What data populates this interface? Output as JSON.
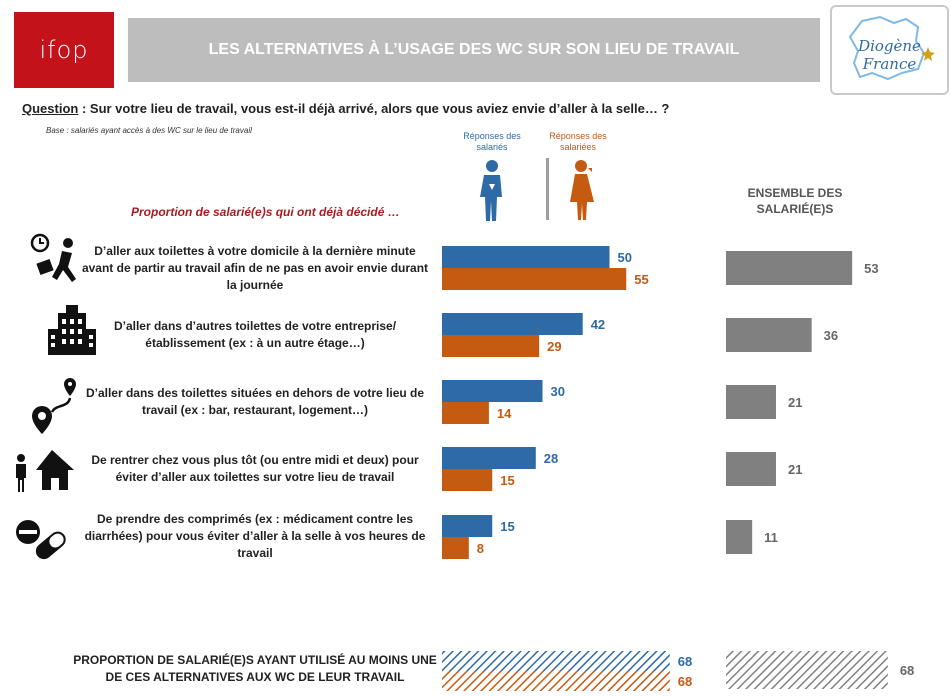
{
  "header": {
    "logo_text": "ifop",
    "title": "LES ALTERNATIVES À L’USAGE DES WC SUR SON LIEU DE TRAVAIL",
    "partner_logo_line1": "Diogène",
    "partner_logo_line2": "France"
  },
  "question": {
    "label": "Question",
    "text": " : Sur votre lieu de travail, vous est-il déjà arrivé, alors que vous aviez envie d’aller à la selle… ?"
  },
  "base_note": "Base : salariés ayant accès à des WC sur le lieu de travail",
  "legend": {
    "men": "Réponses des salariés",
    "women": "Réponses des salariées"
  },
  "section_subtitle": "Proportion de salarié(e)s qui ont déjà décidé …",
  "ensemble_header": "ENSEMBLE DES SALARIÉ(E)S",
  "colors": {
    "men": "#2e6aa6",
    "women": "#c55a11",
    "ensemble": "#808080",
    "subtitle": "#a61d22"
  },
  "chart_data": {
    "type": "bar",
    "orientation": "horizontal",
    "categories": [
      "D’aller aux toilettes à votre domicile à la dernière minute avant de partir au travail afin de ne pas en avoir envie durant la journée",
      "D’aller dans d’autres toilettes de votre entreprise/établissement (ex : à un autre étage…)",
      "D’aller dans des toilettes situées en dehors de votre lieu de travail (ex : bar, restaurant, logement…)",
      "De rentrer chez vous plus tôt (ou entre midi et deux) pour éviter d’aller aux toilettes sur votre lieu de travail",
      "De prendre des comprimés (ex : médicament contre les diarrhées) pour vous éviter d’aller à la selle à vos heures de travail"
    ],
    "series": [
      {
        "name": "Réponses des salariés",
        "values": [
          50,
          42,
          30,
          28,
          15
        ]
      },
      {
        "name": "Réponses des salariées",
        "values": [
          55,
          29,
          14,
          15,
          8
        ]
      },
      {
        "name": "ENSEMBLE DES SALARIÉ(E)S",
        "values": [
          53,
          36,
          21,
          21,
          11
        ]
      }
    ],
    "summary": {
      "label": "PROPORTION DE SALARIÉ(E)S AYANT UTILISÉ AU MOINS UNE DE CES ALTERNATIVES AUX WC DE LEUR TRAVAIL",
      "men": 68,
      "women": 68,
      "ensemble": 68
    }
  }
}
